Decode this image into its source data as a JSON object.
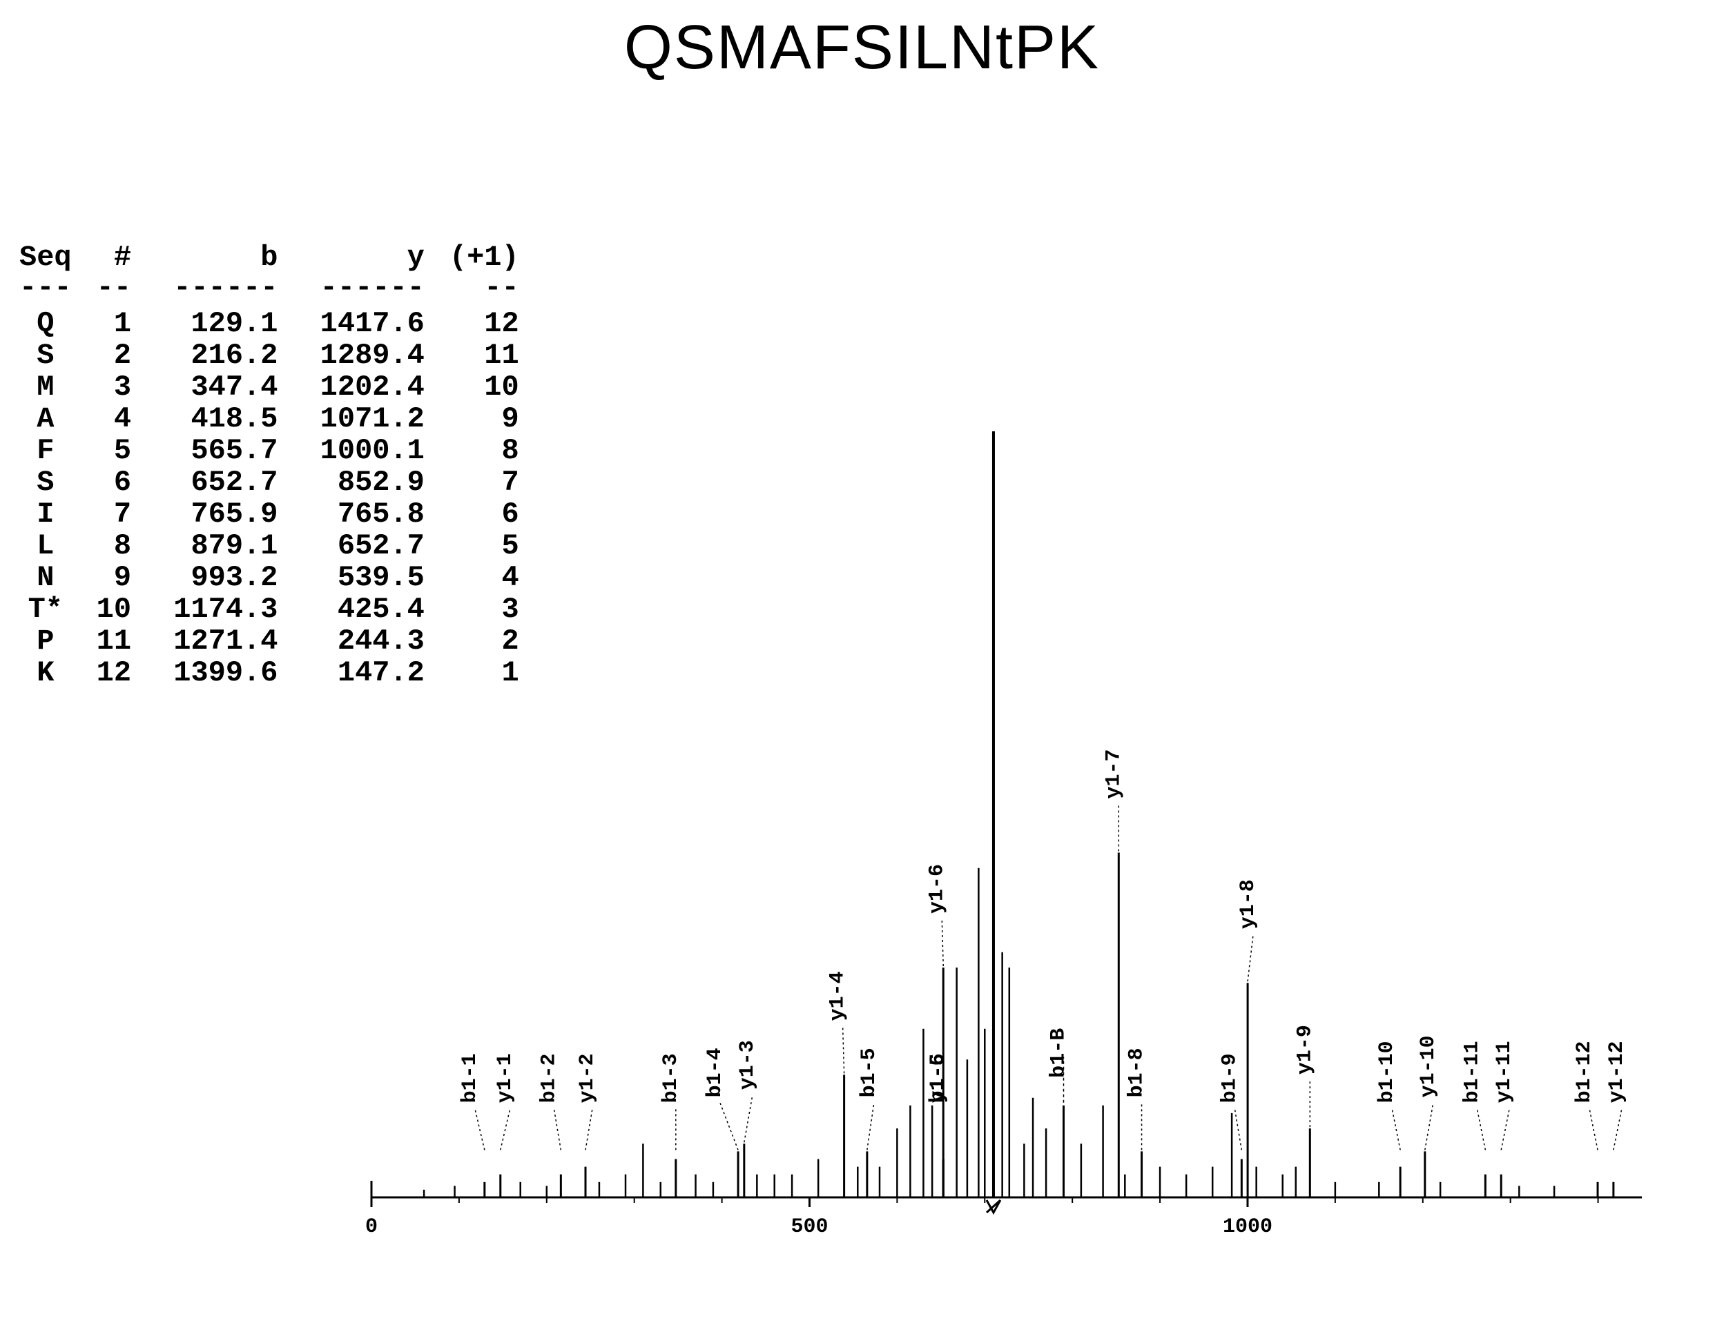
{
  "title": "QSMAFSILNtPK",
  "table": {
    "headers": {
      "seq": "Seq",
      "num": "#",
      "b": "b",
      "y": "y",
      "p1": "(+1)"
    },
    "dashes": {
      "seq": "---",
      "num": "--",
      "b": "------",
      "y": "------",
      "p1": "--"
    },
    "rows": [
      {
        "seq": "Q",
        "num": "1",
        "b": "129.1",
        "y": "1417.6",
        "p1": "12"
      },
      {
        "seq": "S",
        "num": "2",
        "b": "216.2",
        "y": "1289.4",
        "p1": "11"
      },
      {
        "seq": "M",
        "num": "3",
        "b": "347.4",
        "y": "1202.4",
        "p1": "10"
      },
      {
        "seq": "A",
        "num": "4",
        "b": "418.5",
        "y": "1071.2",
        "p1": "9"
      },
      {
        "seq": "F",
        "num": "5",
        "b": "565.7",
        "y": "1000.1",
        "p1": "8"
      },
      {
        "seq": "S",
        "num": "6",
        "b": "652.7",
        "y": "852.9",
        "p1": "7"
      },
      {
        "seq": "I",
        "num": "7",
        "b": "765.9",
        "y": "765.8",
        "p1": "6"
      },
      {
        "seq": "L",
        "num": "8",
        "b": "879.1",
        "y": "652.7",
        "p1": "5"
      },
      {
        "seq": "N",
        "num": "9",
        "b": "993.2",
        "y": "539.5",
        "p1": "4"
      },
      {
        "seq": "T*",
        "num": "10",
        "b": "1174.3",
        "y": "425.4",
        "p1": "3"
      },
      {
        "seq": "P",
        "num": "11",
        "b": "1271.4",
        "y": "244.3",
        "p1": "2"
      },
      {
        "seq": "K",
        "num": "12",
        "b": "1399.6",
        "y": "147.2",
        "p1": "1"
      }
    ]
  },
  "spectrum": {
    "type": "mass-spectrum",
    "xlim": [
      0,
      1450
    ],
    "x_ticks": [
      0,
      500,
      1000
    ],
    "x_tick_labels": [
      "0",
      "500",
      "1000"
    ],
    "axis_color": "#000000",
    "background_color": "#ffffff",
    "peak_color": "#000000",
    "peak_width": 3,
    "label_fontsize": 30,
    "axis_fontsize": 30,
    "labeled_peaks": [
      {
        "label": "b1-1",
        "mz": 129.1,
        "height": 0.02,
        "label_dx": -14
      },
      {
        "label": "y1-1",
        "mz": 147.2,
        "height": 0.03,
        "label_dx": 14
      },
      {
        "label": "b1-2",
        "mz": 216.2,
        "height": 0.03,
        "label_dx": -10
      },
      {
        "label": "y1-2",
        "mz": 244.3,
        "height": 0.04,
        "label_dx": 10
      },
      {
        "label": "b1-3",
        "mz": 347.4,
        "height": 0.05,
        "label_dx": 0
      },
      {
        "label": "b1-4",
        "mz": 418.5,
        "height": 0.06,
        "label_dx": -26,
        "label_text_override": "b1-4"
      },
      {
        "label": "y1-3",
        "mz": 425.4,
        "height": 0.07,
        "label_dx": 12
      },
      {
        "label": "y1-4",
        "mz": 539.5,
        "height": 0.16,
        "label_dx": -2
      },
      {
        "label": "b1-5",
        "mz": 565.7,
        "height": 0.06,
        "label_dx": 10
      },
      {
        "label": "y1-5",
        "mz": 652.7,
        "height": 0.05,
        "label_dx": 0
      },
      {
        "label": "y1-6",
        "mz": 652.7,
        "height": 0.3,
        "label_dx": -2
      },
      {
        "label": "b1-6",
        "mz": 652.7,
        "height": 0.05,
        "label_dx": 0
      },
      {
        "label": "y1-7",
        "mz": 852.9,
        "height": 0.45,
        "label_dx": 0
      },
      {
        "label": "b1-8",
        "mz": 879.1,
        "height": 0.06,
        "label_dx": 0
      },
      {
        "label": "b1-9",
        "mz": 993.2,
        "height": 0.05,
        "label_dx": -10
      },
      {
        "label": "y1-8",
        "mz": 1000.1,
        "height": 0.28,
        "label_dx": 8
      },
      {
        "label": "y1-9",
        "mz": 1071.2,
        "height": 0.09,
        "label_dx": 0
      },
      {
        "label": "b1-10",
        "mz": 1174.3,
        "height": 0.04,
        "label_dx": -12
      },
      {
        "label": "y1-10",
        "mz": 1202.4,
        "height": 0.06,
        "label_dx": 12
      },
      {
        "label": "b1-11",
        "mz": 1271.4,
        "height": 0.03,
        "label_dx": -12
      },
      {
        "label": "y1-11",
        "mz": 1289.4,
        "height": 0.03,
        "label_dx": 12
      },
      {
        "label": "b1-12",
        "mz": 1399.6,
        "height": 0.02,
        "label_dx": -12
      },
      {
        "label": "y1-12",
        "mz": 1417.6,
        "height": 0.02,
        "label_dx": 12
      }
    ],
    "special_labeled": [
      {
        "label": "b1-B",
        "mz": 790,
        "height": 0.12,
        "label_dx": 0
      }
    ],
    "base_peak": {
      "mz": 710,
      "height": 1.0
    },
    "noise_peaks": [
      {
        "mz": 60,
        "h": 0.01
      },
      {
        "mz": 95,
        "h": 0.015
      },
      {
        "mz": 170,
        "h": 0.02
      },
      {
        "mz": 200,
        "h": 0.015
      },
      {
        "mz": 260,
        "h": 0.02
      },
      {
        "mz": 290,
        "h": 0.03
      },
      {
        "mz": 310,
        "h": 0.07
      },
      {
        "mz": 330,
        "h": 0.02
      },
      {
        "mz": 370,
        "h": 0.03
      },
      {
        "mz": 390,
        "h": 0.02
      },
      {
        "mz": 440,
        "h": 0.03
      },
      {
        "mz": 460,
        "h": 0.03
      },
      {
        "mz": 480,
        "h": 0.03
      },
      {
        "mz": 510,
        "h": 0.05
      },
      {
        "mz": 555,
        "h": 0.04
      },
      {
        "mz": 580,
        "h": 0.04
      },
      {
        "mz": 600,
        "h": 0.09
      },
      {
        "mz": 615,
        "h": 0.12
      },
      {
        "mz": 630,
        "h": 0.22
      },
      {
        "mz": 640,
        "h": 0.12
      },
      {
        "mz": 668,
        "h": 0.3
      },
      {
        "mz": 680,
        "h": 0.18
      },
      {
        "mz": 693,
        "h": 0.43
      },
      {
        "mz": 700,
        "h": 0.22
      },
      {
        "mz": 720,
        "h": 0.32
      },
      {
        "mz": 728,
        "h": 0.3
      },
      {
        "mz": 745,
        "h": 0.07
      },
      {
        "mz": 755,
        "h": 0.13
      },
      {
        "mz": 770,
        "h": 0.09
      },
      {
        "mz": 810,
        "h": 0.07
      },
      {
        "mz": 835,
        "h": 0.12
      },
      {
        "mz": 860,
        "h": 0.03
      },
      {
        "mz": 900,
        "h": 0.04
      },
      {
        "mz": 930,
        "h": 0.03
      },
      {
        "mz": 960,
        "h": 0.04
      },
      {
        "mz": 982,
        "h": 0.11
      },
      {
        "mz": 1010,
        "h": 0.04
      },
      {
        "mz": 1040,
        "h": 0.03
      },
      {
        "mz": 1055,
        "h": 0.04
      },
      {
        "mz": 1100,
        "h": 0.02
      },
      {
        "mz": 1150,
        "h": 0.02
      },
      {
        "mz": 1220,
        "h": 0.02
      },
      {
        "mz": 1310,
        "h": 0.015
      },
      {
        "mz": 1350,
        "h": 0.015
      }
    ],
    "arrow_mark": {
      "mz": 710
    }
  }
}
